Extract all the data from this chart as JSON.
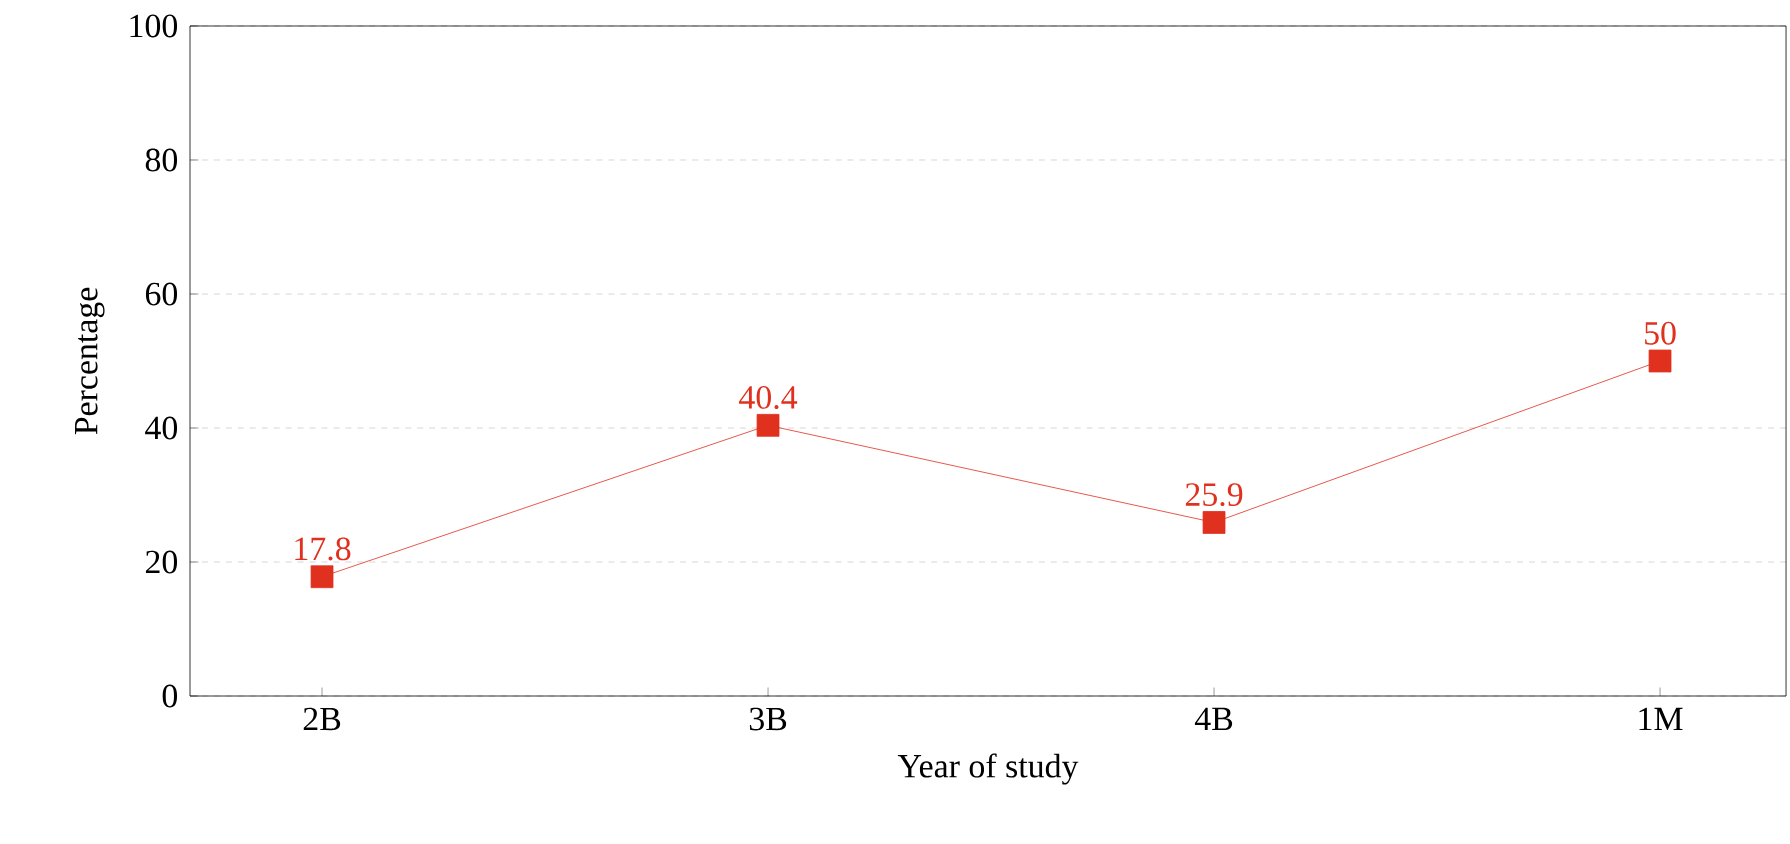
{
  "chart_data": {
    "type": "line",
    "xlabel": "Year of study",
    "ylabel": "Percentage",
    "categories": [
      "2B",
      "3B",
      "4B",
      "1M"
    ],
    "series": [
      {
        "color": "#e0301e",
        "values": [
          17.8,
          40.4,
          25.9,
          50
        ]
      }
    ],
    "ylim": [
      0,
      100
    ],
    "yticks": [
      0,
      20,
      40,
      60,
      80,
      100
    ],
    "grid": "y",
    "marker": "square",
    "line_style": "solid",
    "data_labels": true
  }
}
